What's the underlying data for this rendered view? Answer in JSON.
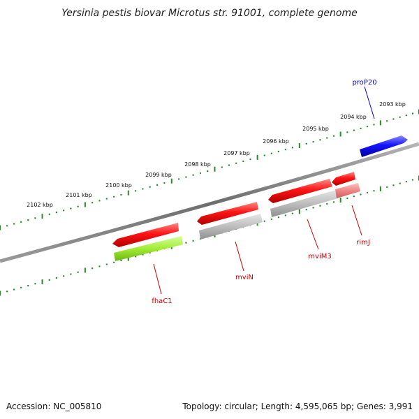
{
  "title": "Yersinia pestis biovar Microtus str. 91001, complete genome",
  "footer": {
    "accession": "Accession: NC_005810",
    "summary": "Topology: circular; Length: 4,595,065 bp; Genes: 3,991"
  },
  "ruler": {
    "labels": [
      "2102 kbp",
      "2101 kbp",
      "2100 kbp",
      "2099 kbp",
      "2098 kbp",
      "2097 kbp",
      "2096 kbp",
      "2095 kbp",
      "2094 kbp",
      "2093 kbp"
    ]
  },
  "genes": [
    {
      "name": "fhaC1",
      "label_color": "#cc0000"
    },
    {
      "name": "mviN",
      "label_color": "#cc0000"
    },
    {
      "name": "mviM3",
      "label_color": "#cc0000"
    },
    {
      "name": "rimJ",
      "label_color": "#cc0000"
    },
    {
      "name": "proP20",
      "label_color": "#0000cc"
    }
  ],
  "colors": {
    "backbone": "#777777",
    "forward_gene": "#ff1a1a",
    "reverse_gene": "#1a1aff",
    "cds_grey": "#bfbfbf",
    "cds_green": "#a6ee3a",
    "cds_pink": "#ee8888",
    "ruler": "#2a8a2a"
  }
}
